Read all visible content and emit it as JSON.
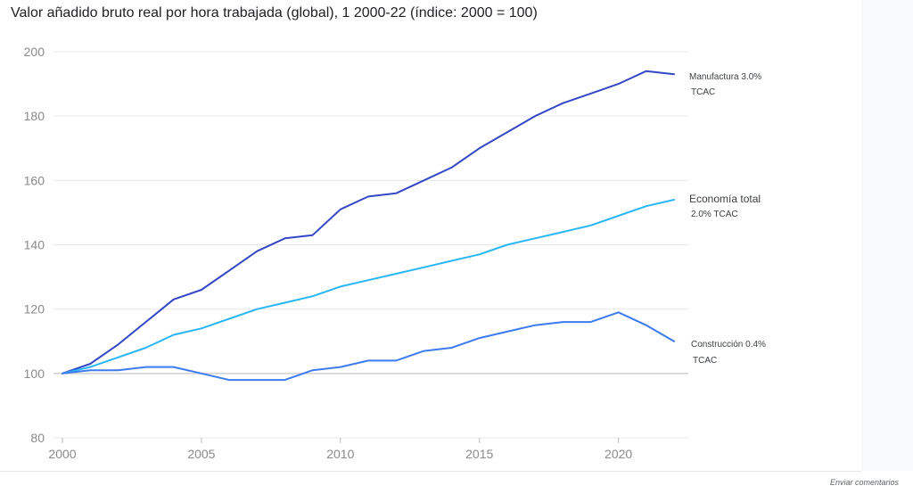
{
  "title": "Valor añadido bruto real por hora trabajada (global), 1 2000-22 (índice: 2000 = 100)",
  "feedback_link": "Enviar comentarios",
  "chart_data": {
    "type": "line",
    "title": "Valor añadido bruto real por hora trabajada (global), 1 2000-22 (índice: 2000 = 100)",
    "xlim": [
      2000,
      2022
    ],
    "ylim": [
      80,
      200
    ],
    "x_ticks": [
      "2000",
      "2005",
      "2010",
      "2015",
      "2020"
    ],
    "y_ticks": [
      "200",
      "180",
      "160",
      "140",
      "120",
      "100",
      "80"
    ],
    "grid": true,
    "x": [
      2000,
      2001,
      2002,
      2003,
      2004,
      2005,
      2006,
      2007,
      2008,
      2009,
      2010,
      2011,
      2012,
      2013,
      2014,
      2015,
      2016,
      2017,
      2018,
      2019,
      2020,
      2021,
      2022
    ],
    "series": [
      {
        "key": "manufactura",
        "label_line1": "Manufactura 3.0%",
        "label_line2": "TCAC",
        "color": "#3448c5",
        "values": [
          100,
          103,
          109,
          116,
          123,
          126,
          132,
          138,
          142,
          143,
          151,
          155,
          156,
          160,
          164,
          170,
          175,
          180,
          184,
          187,
          190,
          194,
          193
        ]
      },
      {
        "key": "economia",
        "label_line1": "Economía total",
        "label_line2": "2.0% TCAC",
        "color": "#29b6f6",
        "values": [
          100,
          102,
          105,
          108,
          112,
          114,
          117,
          120,
          122,
          124,
          127,
          129,
          131,
          133,
          135,
          137,
          140,
          142,
          144,
          146,
          149,
          152,
          154
        ]
      },
      {
        "key": "construccion",
        "label_line1": "Construcción 0.4%",
        "label_line2": "TCAC",
        "color": "#3d7bf0",
        "values": [
          100,
          101,
          101,
          102,
          102,
          100,
          98,
          98,
          98,
          101,
          102,
          104,
          104,
          107,
          108,
          111,
          113,
          115,
          116,
          116,
          119,
          115,
          110
        ]
      }
    ]
  }
}
